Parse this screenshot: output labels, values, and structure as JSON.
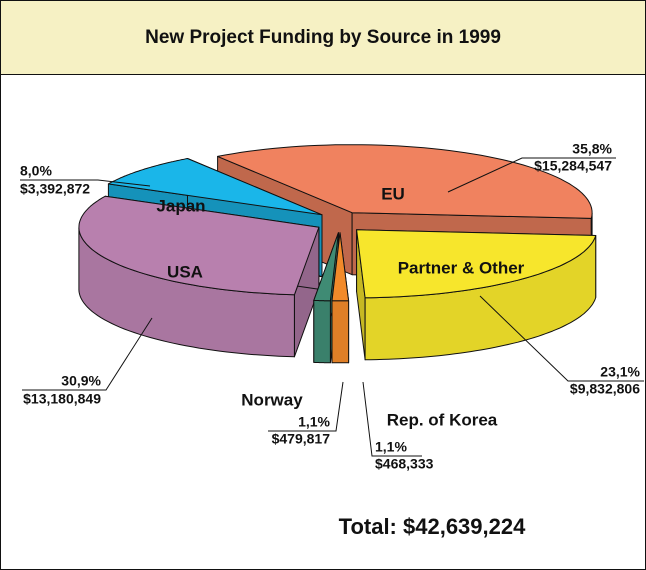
{
  "chart_data": {
    "type": "pie3d",
    "title": "New Project Funding by Source in 1999",
    "categories": [
      "EU",
      "Partner & Other",
      "Rep. of Korea",
      "Norway",
      "USA",
      "Japan"
    ],
    "values": [
      35.8,
      23.1,
      1.1,
      1.1,
      30.9,
      8.0
    ],
    "value_labels": [
      "35,8%",
      "23,1%",
      "1,1%",
      "1,1%",
      "30,9%",
      "8,0%"
    ],
    "amounts": [
      15284547,
      9832806,
      468333,
      479817,
      13180849,
      3392872
    ],
    "amount_labels": [
      "$15,284,547",
      "$9,832,806",
      "$468,333",
      "$479,817",
      "$13,180,849",
      "$3,392,872"
    ],
    "colors": [
      "#f0825f",
      "#f7e62c",
      "#f28a2a",
      "#3f8b74",
      "#b880ae",
      "#1ab6e9"
    ],
    "total": "Total: $42,639,224"
  }
}
